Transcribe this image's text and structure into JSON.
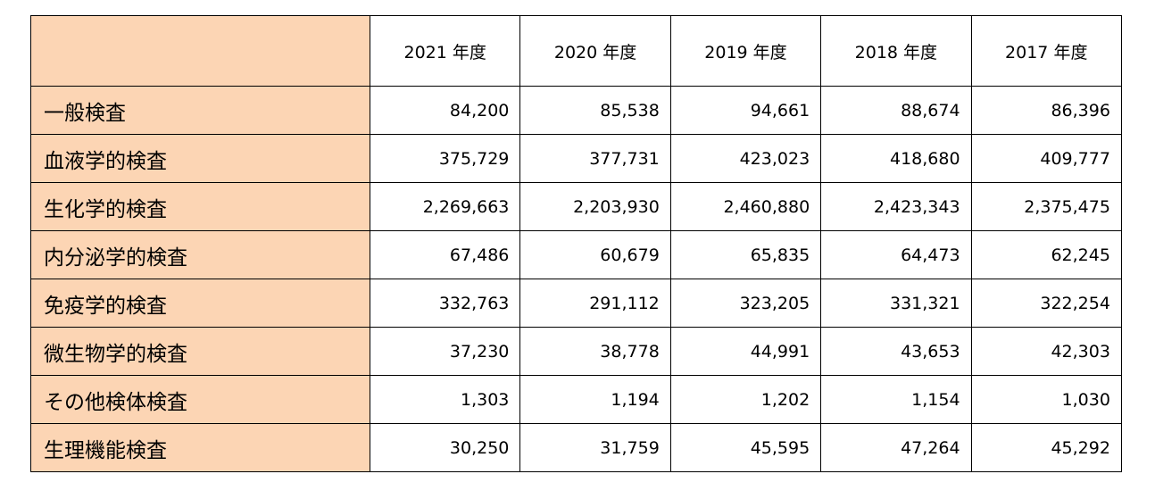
{
  "table": {
    "columns": [
      "",
      "2021 年度",
      "2020 年度",
      "2019 年度",
      "2018 年度",
      "2017 年度"
    ],
    "rows": [
      {
        "label": "一般検査",
        "values": [
          "84,200",
          "85,538",
          "94,661",
          "88,674",
          "86,396"
        ]
      },
      {
        "label": "血液学的検査",
        "values": [
          "375,729",
          "377,731",
          "423,023",
          "418,680",
          "409,777"
        ]
      },
      {
        "label": "生化学的検査",
        "values": [
          "2,269,663",
          "2,203,930",
          "2,460,880",
          "2,423,343",
          "2,375,475"
        ]
      },
      {
        "label": "内分泌学的検査",
        "values": [
          "67,486",
          "60,679",
          "65,835",
          "64,473",
          "62,245"
        ]
      },
      {
        "label": "免疫学的検査",
        "values": [
          "332,763",
          "291,112",
          "323,205",
          "331,321",
          "322,254"
        ]
      },
      {
        "label": "微生物学的検査",
        "values": [
          "37,230",
          "38,778",
          "44,991",
          "43,653",
          "42,303"
        ]
      },
      {
        "label": "その他検体検査",
        "values": [
          "1,303",
          "1,194",
          "1,202",
          "1,154",
          "1,030"
        ]
      },
      {
        "label": "生理機能検査",
        "values": [
          "30,250",
          "31,759",
          "45,595",
          "47,264",
          "45,292"
        ]
      }
    ]
  },
  "colors": {
    "label_bg": "#fcd5b4",
    "border": "#000000"
  }
}
